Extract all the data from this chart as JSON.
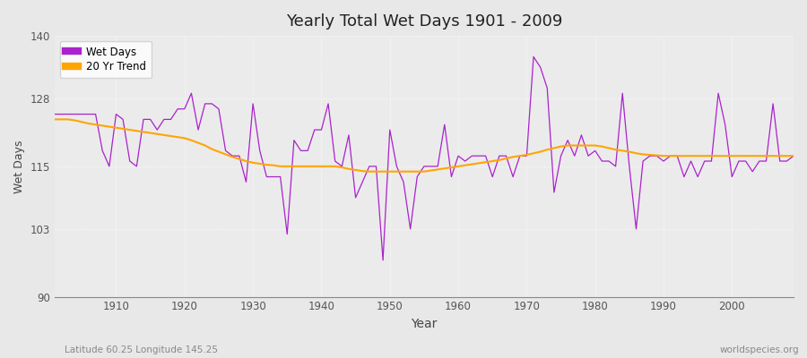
{
  "title": "Yearly Total Wet Days 1901 - 2009",
  "xlabel": "Year",
  "ylabel": "Wet Days",
  "xlim": [
    1901,
    2009
  ],
  "ylim": [
    90,
    140
  ],
  "yticks": [
    90,
    103,
    115,
    128,
    140
  ],
  "xticks": [
    1910,
    1920,
    1930,
    1940,
    1950,
    1960,
    1970,
    1980,
    1990,
    2000
  ],
  "fig_color": "#e8e8e8",
  "plot_bg_color": "#ebebeb",
  "line_color": "#aa22cc",
  "trend_color": "#FFA500",
  "footer_left": "Latitude 60.25 Longitude 145.25",
  "footer_right": "worldspecies.org",
  "legend_labels": [
    "Wet Days",
    "20 Yr Trend"
  ],
  "wet_days": [
    125,
    125,
    125,
    125,
    125,
    125,
    125,
    118,
    115,
    125,
    124,
    116,
    115,
    124,
    124,
    122,
    124,
    124,
    126,
    126,
    129,
    122,
    127,
    127,
    126,
    118,
    117,
    117,
    112,
    127,
    118,
    113,
    113,
    113,
    102,
    120,
    118,
    118,
    122,
    122,
    127,
    116,
    115,
    121,
    109,
    112,
    115,
    115,
    97,
    122,
    115,
    112,
    103,
    113,
    115,
    115,
    115,
    123,
    113,
    117,
    116,
    117,
    117,
    117,
    113,
    117,
    117,
    113,
    117,
    117,
    136,
    134,
    130,
    110,
    117,
    120,
    117,
    121,
    117,
    118,
    116,
    116,
    115,
    129,
    115,
    103,
    116,
    117,
    117,
    116,
    117,
    117,
    113,
    116,
    113,
    116,
    116,
    129,
    123,
    113,
    116,
    116,
    114,
    116,
    116,
    127,
    116,
    116,
    117
  ],
  "trend": [
    124.0,
    124.0,
    124.0,
    123.8,
    123.5,
    123.2,
    123.0,
    122.8,
    122.6,
    122.4,
    122.2,
    122.0,
    121.8,
    121.6,
    121.4,
    121.2,
    121.0,
    120.8,
    120.6,
    120.4,
    120.0,
    119.5,
    119.0,
    118.3,
    117.8,
    117.3,
    116.8,
    116.4,
    116.0,
    115.7,
    115.5,
    115.3,
    115.2,
    115.0,
    115.0,
    115.0,
    115.0,
    115.0,
    115.0,
    115.0,
    115.0,
    115.0,
    114.8,
    114.5,
    114.3,
    114.1,
    114.0,
    114.0,
    114.0,
    114.0,
    114.0,
    114.0,
    114.0,
    114.0,
    114.0,
    114.2,
    114.4,
    114.6,
    114.8,
    115.0,
    115.2,
    115.4,
    115.6,
    115.8,
    116.0,
    116.2,
    116.5,
    116.8,
    117.0,
    117.2,
    117.5,
    117.8,
    118.2,
    118.5,
    118.8,
    119.0,
    119.0,
    119.0,
    119.0,
    119.0,
    118.8,
    118.5,
    118.2,
    118.0,
    117.8,
    117.5,
    117.3,
    117.2,
    117.1,
    117.0,
    117.0,
    117.0,
    117.0,
    117.0,
    117.0,
    117.0,
    117.0,
    117.0,
    117.0,
    117.0,
    117.0,
    117.0,
    117.0,
    117.0,
    117.0,
    117.0,
    117.0,
    117.0,
    117.0
  ]
}
